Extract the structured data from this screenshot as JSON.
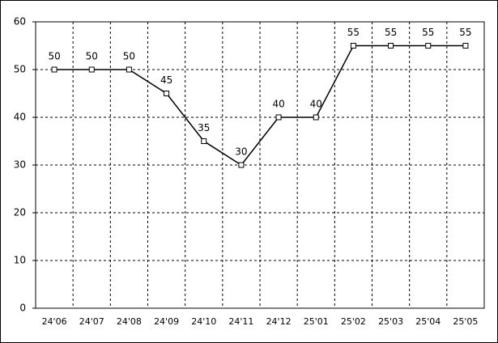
{
  "chart_data": {
    "type": "line",
    "categories": [
      "24'06",
      "24'07",
      "24'08",
      "24'09",
      "24'10",
      "24'11",
      "24'12",
      "25'01",
      "25'02",
      "25'03",
      "25'04",
      "25'05"
    ],
    "values": [
      50,
      50,
      50,
      45,
      35,
      30,
      40,
      40,
      55,
      55,
      55,
      55
    ],
    "color": "#000000",
    "ylim": [
      0,
      60
    ],
    "yticks": [
      0,
      10,
      20,
      30,
      40,
      50,
      60
    ],
    "grid": true
  }
}
